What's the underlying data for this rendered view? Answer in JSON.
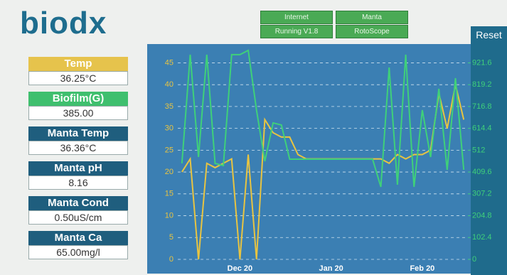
{
  "header": {
    "logo": "biodx",
    "buttons": [
      "Internet",
      "Manta",
      "Running V1.8",
      "RotoScope"
    ],
    "reset": "Reset"
  },
  "panels": [
    {
      "label": "Temp",
      "value": "36.25°C"
    },
    {
      "label": "Biofilm(G)",
      "value": "385.00"
    },
    {
      "label": "Manta Temp",
      "value": "36.36°C"
    },
    {
      "label": "Manta pH",
      "value": "8.16"
    },
    {
      "label": "Manta Cond",
      "value": "0.50uS/cm"
    },
    {
      "label": "Manta Ca",
      "value": "65.00mg/l"
    }
  ],
  "chart_data": {
    "type": "line",
    "categories": [
      null,
      null,
      null,
      null,
      null,
      null,
      null,
      "Dec 20",
      null,
      null,
      null,
      null,
      null,
      null,
      null,
      null,
      null,
      null,
      "Jan 20",
      null,
      null,
      null,
      null,
      null,
      null,
      null,
      null,
      null,
      null,
      "Feb 20",
      null,
      null,
      null,
      null,
      null
    ],
    "series": [
      {
        "color": "#e8c441",
        "values": [
          20,
          23,
          0,
          22,
          21,
          22,
          23,
          0,
          24,
          0,
          32,
          29,
          28,
          28,
          24,
          23,
          23,
          23,
          23,
          23,
          23,
          23,
          23,
          23,
          23,
          22,
          24,
          23,
          24,
          24,
          25,
          38,
          30,
          40,
          32
        ]
      },
      {
        "color": "#3fd07a",
        "axis": "y2",
        "values": [
          450,
          960,
          480,
          960,
          450,
          440,
          960,
          960,
          980,
          700,
          460,
          640,
          630,
          470,
          470,
          470,
          470,
          470,
          470,
          470,
          470,
          470,
          470,
          470,
          340,
          900,
          350,
          960,
          340,
          700,
          480,
          800,
          420,
          850,
          420
        ]
      }
    ],
    "ylim": [
      0,
      48
    ],
    "yticks": [
      0,
      5,
      10,
      15,
      20,
      25,
      30,
      35,
      40,
      45
    ],
    "y2lim": [
      0,
      983.04
    ],
    "y2ticks": [
      0,
      102.4,
      204.8,
      307.2,
      409.6,
      512,
      614.4,
      716.8,
      819.2,
      921.6
    ],
    "grid": true
  }
}
